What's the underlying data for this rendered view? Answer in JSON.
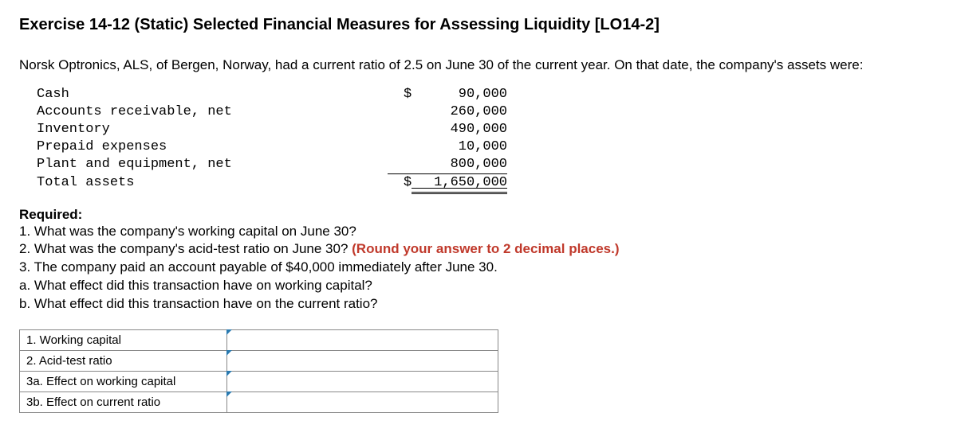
{
  "title": "Exercise 14-12 (Static) Selected Financial Measures for Assessing Liquidity [LO14-2]",
  "intro": "Norsk Optronics, ALS, of Bergen, Norway, had a current ratio of 2.5 on June 30 of the current year. On that date, the company's assets were:",
  "assets": {
    "rows": [
      {
        "label": "Cash",
        "value": "90,000",
        "dollar": true
      },
      {
        "label": "Accounts receivable, net",
        "value": "260,000",
        "dollar": false
      },
      {
        "label": "Inventory",
        "value": "490,000",
        "dollar": false
      },
      {
        "label": "Prepaid expenses",
        "value": "10,000",
        "dollar": false
      },
      {
        "label": "Plant and equipment, net",
        "value": "800,000",
        "dollar": false,
        "underline": true
      }
    ],
    "total": {
      "label": "Total assets",
      "value": "1,650,000",
      "dollar": true
    }
  },
  "required": {
    "heading": "Required:",
    "lines": [
      {
        "text": "1. What was the company's working capital on June 30?"
      },
      {
        "text_a": "2. What was the company's acid-test ratio on June 30? ",
        "hint": "(Round your answer to 2 decimal places.)"
      },
      {
        "text": "3. The company paid an account payable of $40,000 immediately after June 30."
      },
      {
        "text": "a. What effect did this transaction have on working capital?"
      },
      {
        "text": "b. What effect did this transaction have on the current ratio?"
      }
    ]
  },
  "answers": {
    "rows": [
      {
        "label": "1. Working capital"
      },
      {
        "label": "2. Acid-test ratio"
      },
      {
        "label": "3a. Effect on working capital"
      },
      {
        "label": "3b. Effect on current ratio"
      }
    ]
  },
  "colors": {
    "hint": "#c0392b",
    "border": "#888888",
    "tab": "#2a7ab0",
    "text": "#000000",
    "background": "#ffffff"
  }
}
